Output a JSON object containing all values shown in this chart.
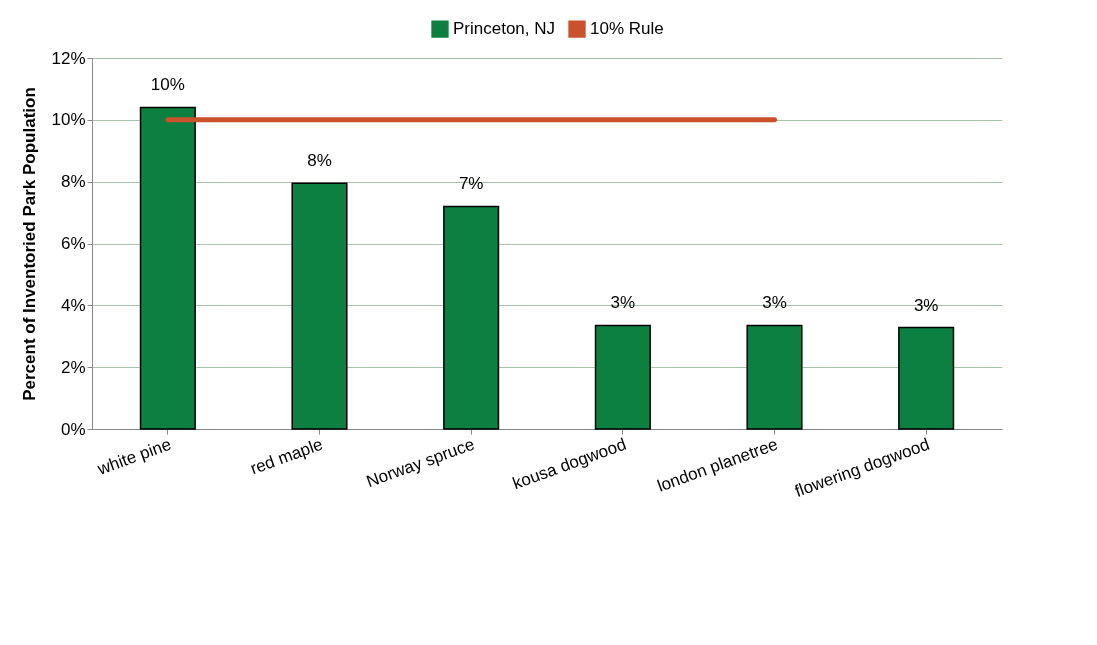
{
  "chart_data": {
    "type": "bar",
    "ylabel": "Percent of Inventoried Park Population",
    "categories": [
      "white pine",
      "red maple",
      "Norway spruce",
      "kousa dogwood",
      "london planetree",
      "flowering dogwood"
    ],
    "series": [
      {
        "name": "Princeton, NJ",
        "color": "#0b8040",
        "values": [
          10.4,
          7.95,
          7.2,
          3.35,
          3.35,
          3.28
        ],
        "value_labels": [
          "10%",
          "8%",
          "7%",
          "3%",
          "3%",
          "3%"
        ]
      },
      {
        "name": "10% Rule",
        "type": "line",
        "color": "#c9512b",
        "values": [
          10,
          10,
          10,
          10,
          10,
          null
        ]
      }
    ],
    "ylim": [
      0,
      12
    ],
    "yticks": [
      {
        "value": 0,
        "label": "0%"
      },
      {
        "value": 2,
        "label": "2%"
      },
      {
        "value": 4,
        "label": "4%"
      },
      {
        "value": 6,
        "label": "6%"
      },
      {
        "value": 8,
        "label": "8%"
      },
      {
        "value": 10,
        "label": "10%"
      },
      {
        "value": 12,
        "label": "12%"
      }
    ],
    "grid": "y",
    "legend": "top"
  }
}
